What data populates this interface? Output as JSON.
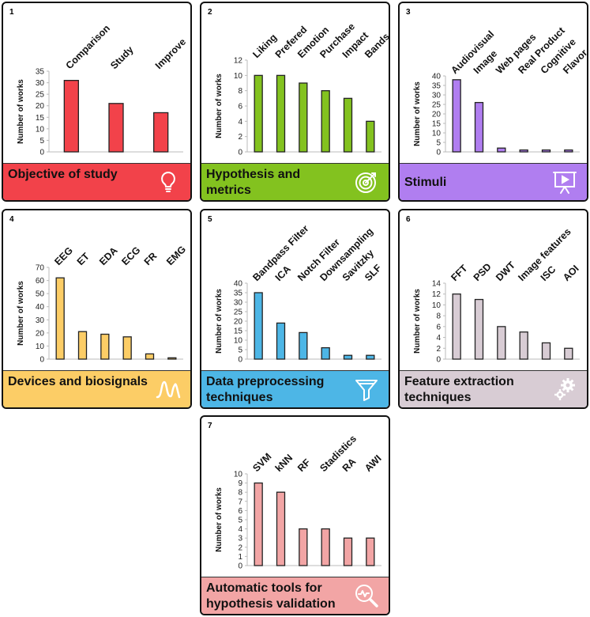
{
  "chart_data": [
    {
      "id": "1",
      "type": "bar",
      "title": "Objective of study",
      "ylabel": "Number of works",
      "xlabel": "",
      "categories": [
        "Comparison",
        "Study",
        "Improve"
      ],
      "values": [
        31,
        21,
        17
      ],
      "yticks": [
        0,
        5,
        10,
        15,
        20,
        25,
        30,
        35
      ],
      "ylim": [
        0,
        35
      ],
      "bar_color": "#f2424a",
      "footer_color": "#f2424a",
      "icon": "lightbulb-icon"
    },
    {
      "id": "2",
      "type": "bar",
      "title": "Hypothesis and metrics",
      "ylabel": "Number of works",
      "xlabel": "",
      "categories": [
        "Liking",
        "Prefered",
        "Emotion",
        "Purchase",
        "Impact",
        "Bands"
      ],
      "values": [
        10,
        10,
        9,
        8,
        7,
        4
      ],
      "yticks": [
        0,
        2,
        4,
        6,
        8,
        10,
        12
      ],
      "ylim": [
        0,
        12
      ],
      "bar_color": "#83c21f",
      "footer_color": "#83c21f",
      "icon": "target-icon"
    },
    {
      "id": "3",
      "type": "bar",
      "title": "Stimuli",
      "ylabel": "Number of works",
      "xlabel": "",
      "categories": [
        "Audiovisual",
        "Image",
        "Web pages",
        "Real Product",
        "Cognitive",
        "Flavor"
      ],
      "values": [
        38,
        26,
        2,
        1,
        1,
        1
      ],
      "yticks": [
        0,
        5,
        10,
        15,
        20,
        25,
        30,
        35,
        40
      ],
      "ylim": [
        0,
        40
      ],
      "bar_color": "#b07ef0",
      "footer_color": "#b07ef0",
      "icon": "presentation-icon"
    },
    {
      "id": "4",
      "type": "bar",
      "title": "Devices and biosignals",
      "ylabel": "Number of works",
      "xlabel": "",
      "categories": [
        "EEG",
        "ET",
        "EDA",
        "ECG",
        "FR",
        "EMG"
      ],
      "values": [
        62,
        21,
        19,
        17,
        4,
        1
      ],
      "yticks": [
        0,
        10,
        20,
        30,
        40,
        50,
        60,
        70
      ],
      "ylim": [
        0,
        70
      ],
      "bar_color": "#fccd66",
      "footer_color": "#fccd66",
      "icon": "signal-icon"
    },
    {
      "id": "5",
      "type": "bar",
      "title": "Data preprocessing techniques",
      "ylabel": "Number of works",
      "xlabel": "",
      "categories": [
        "Bandpass Filter",
        "ICA",
        "Notch Filter",
        "Downsampling",
        "Savitzky",
        "SLF"
      ],
      "values": [
        35,
        19,
        14,
        6,
        2,
        2
      ],
      "yticks": [
        0,
        5,
        10,
        15,
        20,
        25,
        30,
        35,
        40
      ],
      "ylim": [
        0,
        40
      ],
      "bar_color": "#4db6e6",
      "footer_color": "#4db6e6",
      "icon": "filter-icon"
    },
    {
      "id": "6",
      "type": "bar",
      "title": "Feature extraction techniques",
      "ylabel": "Number of works",
      "xlabel": "",
      "categories": [
        "FFT",
        "PSD",
        "DWT",
        "Image features",
        "ISC",
        "AOI"
      ],
      "values": [
        12,
        11,
        6,
        5,
        3,
        2
      ],
      "yticks": [
        0,
        2,
        4,
        6,
        8,
        10,
        12,
        14
      ],
      "ylim": [
        0,
        14
      ],
      "bar_color": "#d8ccd4",
      "footer_color": "#d8ccd4",
      "icon": "gears-icon"
    },
    {
      "id": "7",
      "type": "bar",
      "title": "Automatic tools for hypothesis validation",
      "ylabel": "Number of works",
      "xlabel": "",
      "categories": [
        "SVM",
        "kNN",
        "RF",
        "Stadistics",
        "RA",
        "AWI"
      ],
      "values": [
        9,
        8,
        4,
        4,
        3,
        3
      ],
      "yticks": [
        0,
        1,
        2,
        3,
        4,
        5,
        6,
        7,
        8,
        9,
        10
      ],
      "ylim": [
        0,
        10
      ],
      "bar_color": "#f2a5a5",
      "footer_color": "#f2a5a5",
      "icon": "magnifier-chart-icon"
    }
  ]
}
